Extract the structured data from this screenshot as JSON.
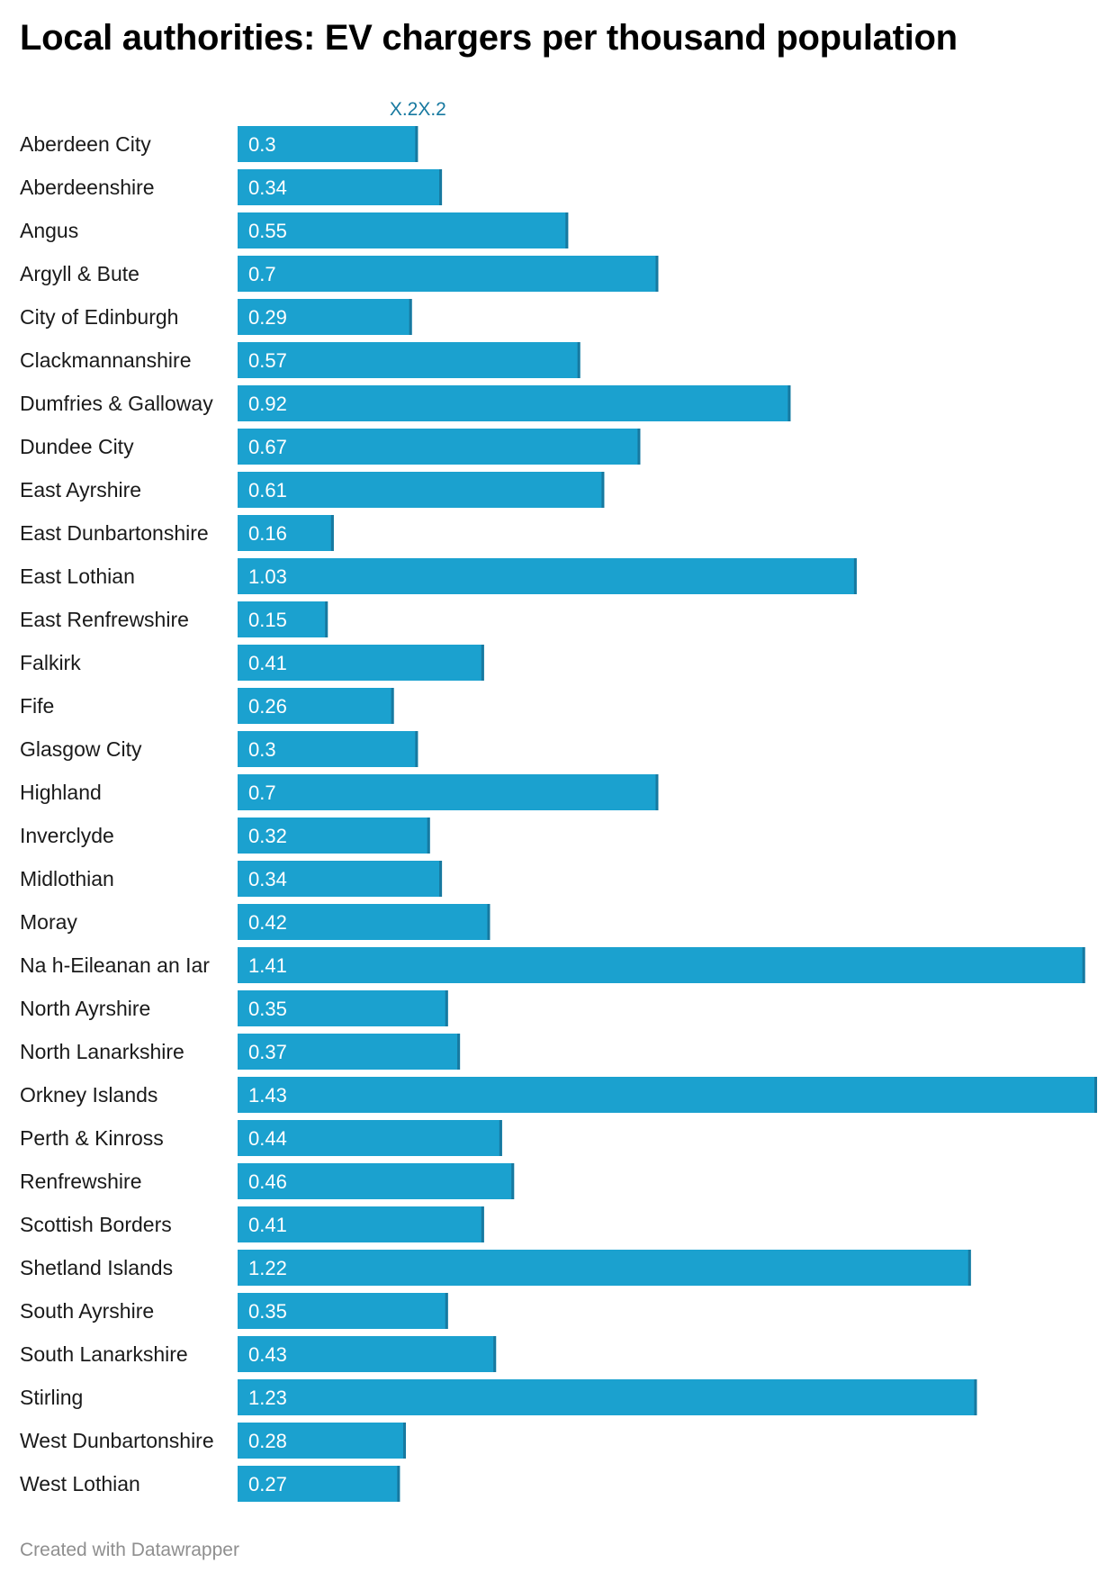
{
  "title": "Local authorities: EV chargers per thousand population",
  "footer": "Created with Datawrapper",
  "colors": {
    "bar": "#1ba1cf",
    "bar_end": "#1779a0",
    "marker_label": "#1779a0",
    "label": "#1a1a1a",
    "value_label": "#ffffff"
  },
  "chart_data": {
    "type": "bar",
    "orientation": "horizontal",
    "title": "Local authorities: EV chargers per thousand population",
    "xlabel": "",
    "ylabel": "",
    "marker_label": "X.2X.2",
    "xlim": [
      0,
      1.43
    ],
    "categories": [
      "Aberdeen City",
      "Aberdeenshire",
      "Angus",
      "Argyll & Bute",
      "City of Edinburgh",
      "Clackmannanshire",
      "Dumfries & Galloway",
      "Dundee City",
      "East Ayrshire",
      "East Dunbartonshire",
      "East Lothian",
      "East Renfrewshire",
      "Falkirk",
      "Fife",
      "Glasgow City",
      "Highland",
      "Inverclyde",
      "Midlothian",
      "Moray",
      "Na h-Eileanan an Iar",
      "North Ayrshire",
      "North Lanarkshire",
      "Orkney Islands",
      "Perth & Kinross",
      "Renfrewshire",
      "Scottish Borders",
      "Shetland Islands",
      "South Ayrshire",
      "South Lanarkshire",
      "Stirling",
      "West Dunbartonshire",
      "West Lothian"
    ],
    "values": [
      0.3,
      0.34,
      0.55,
      0.7,
      0.29,
      0.57,
      0.92,
      0.67,
      0.61,
      0.16,
      1.03,
      0.15,
      0.41,
      0.26,
      0.3,
      0.7,
      0.32,
      0.34,
      0.42,
      1.41,
      0.35,
      0.37,
      1.43,
      0.44,
      0.46,
      0.41,
      1.22,
      0.35,
      0.43,
      1.23,
      0.28,
      0.27
    ],
    "value_labels": [
      "0.3",
      "0.34",
      "0.55",
      "0.7",
      "0.29",
      "0.57",
      "0.92",
      "0.67",
      "0.61",
      "0.16",
      "1.03",
      "0.15",
      "0.41",
      "0.26",
      "0.3",
      "0.7",
      "0.32",
      "0.34",
      "0.42",
      "1.41",
      "0.35",
      "0.37",
      "1.43",
      "0.44",
      "0.46",
      "0.41",
      "1.22",
      "0.35",
      "0.43",
      "1.23",
      "0.28",
      "0.27"
    ]
  }
}
